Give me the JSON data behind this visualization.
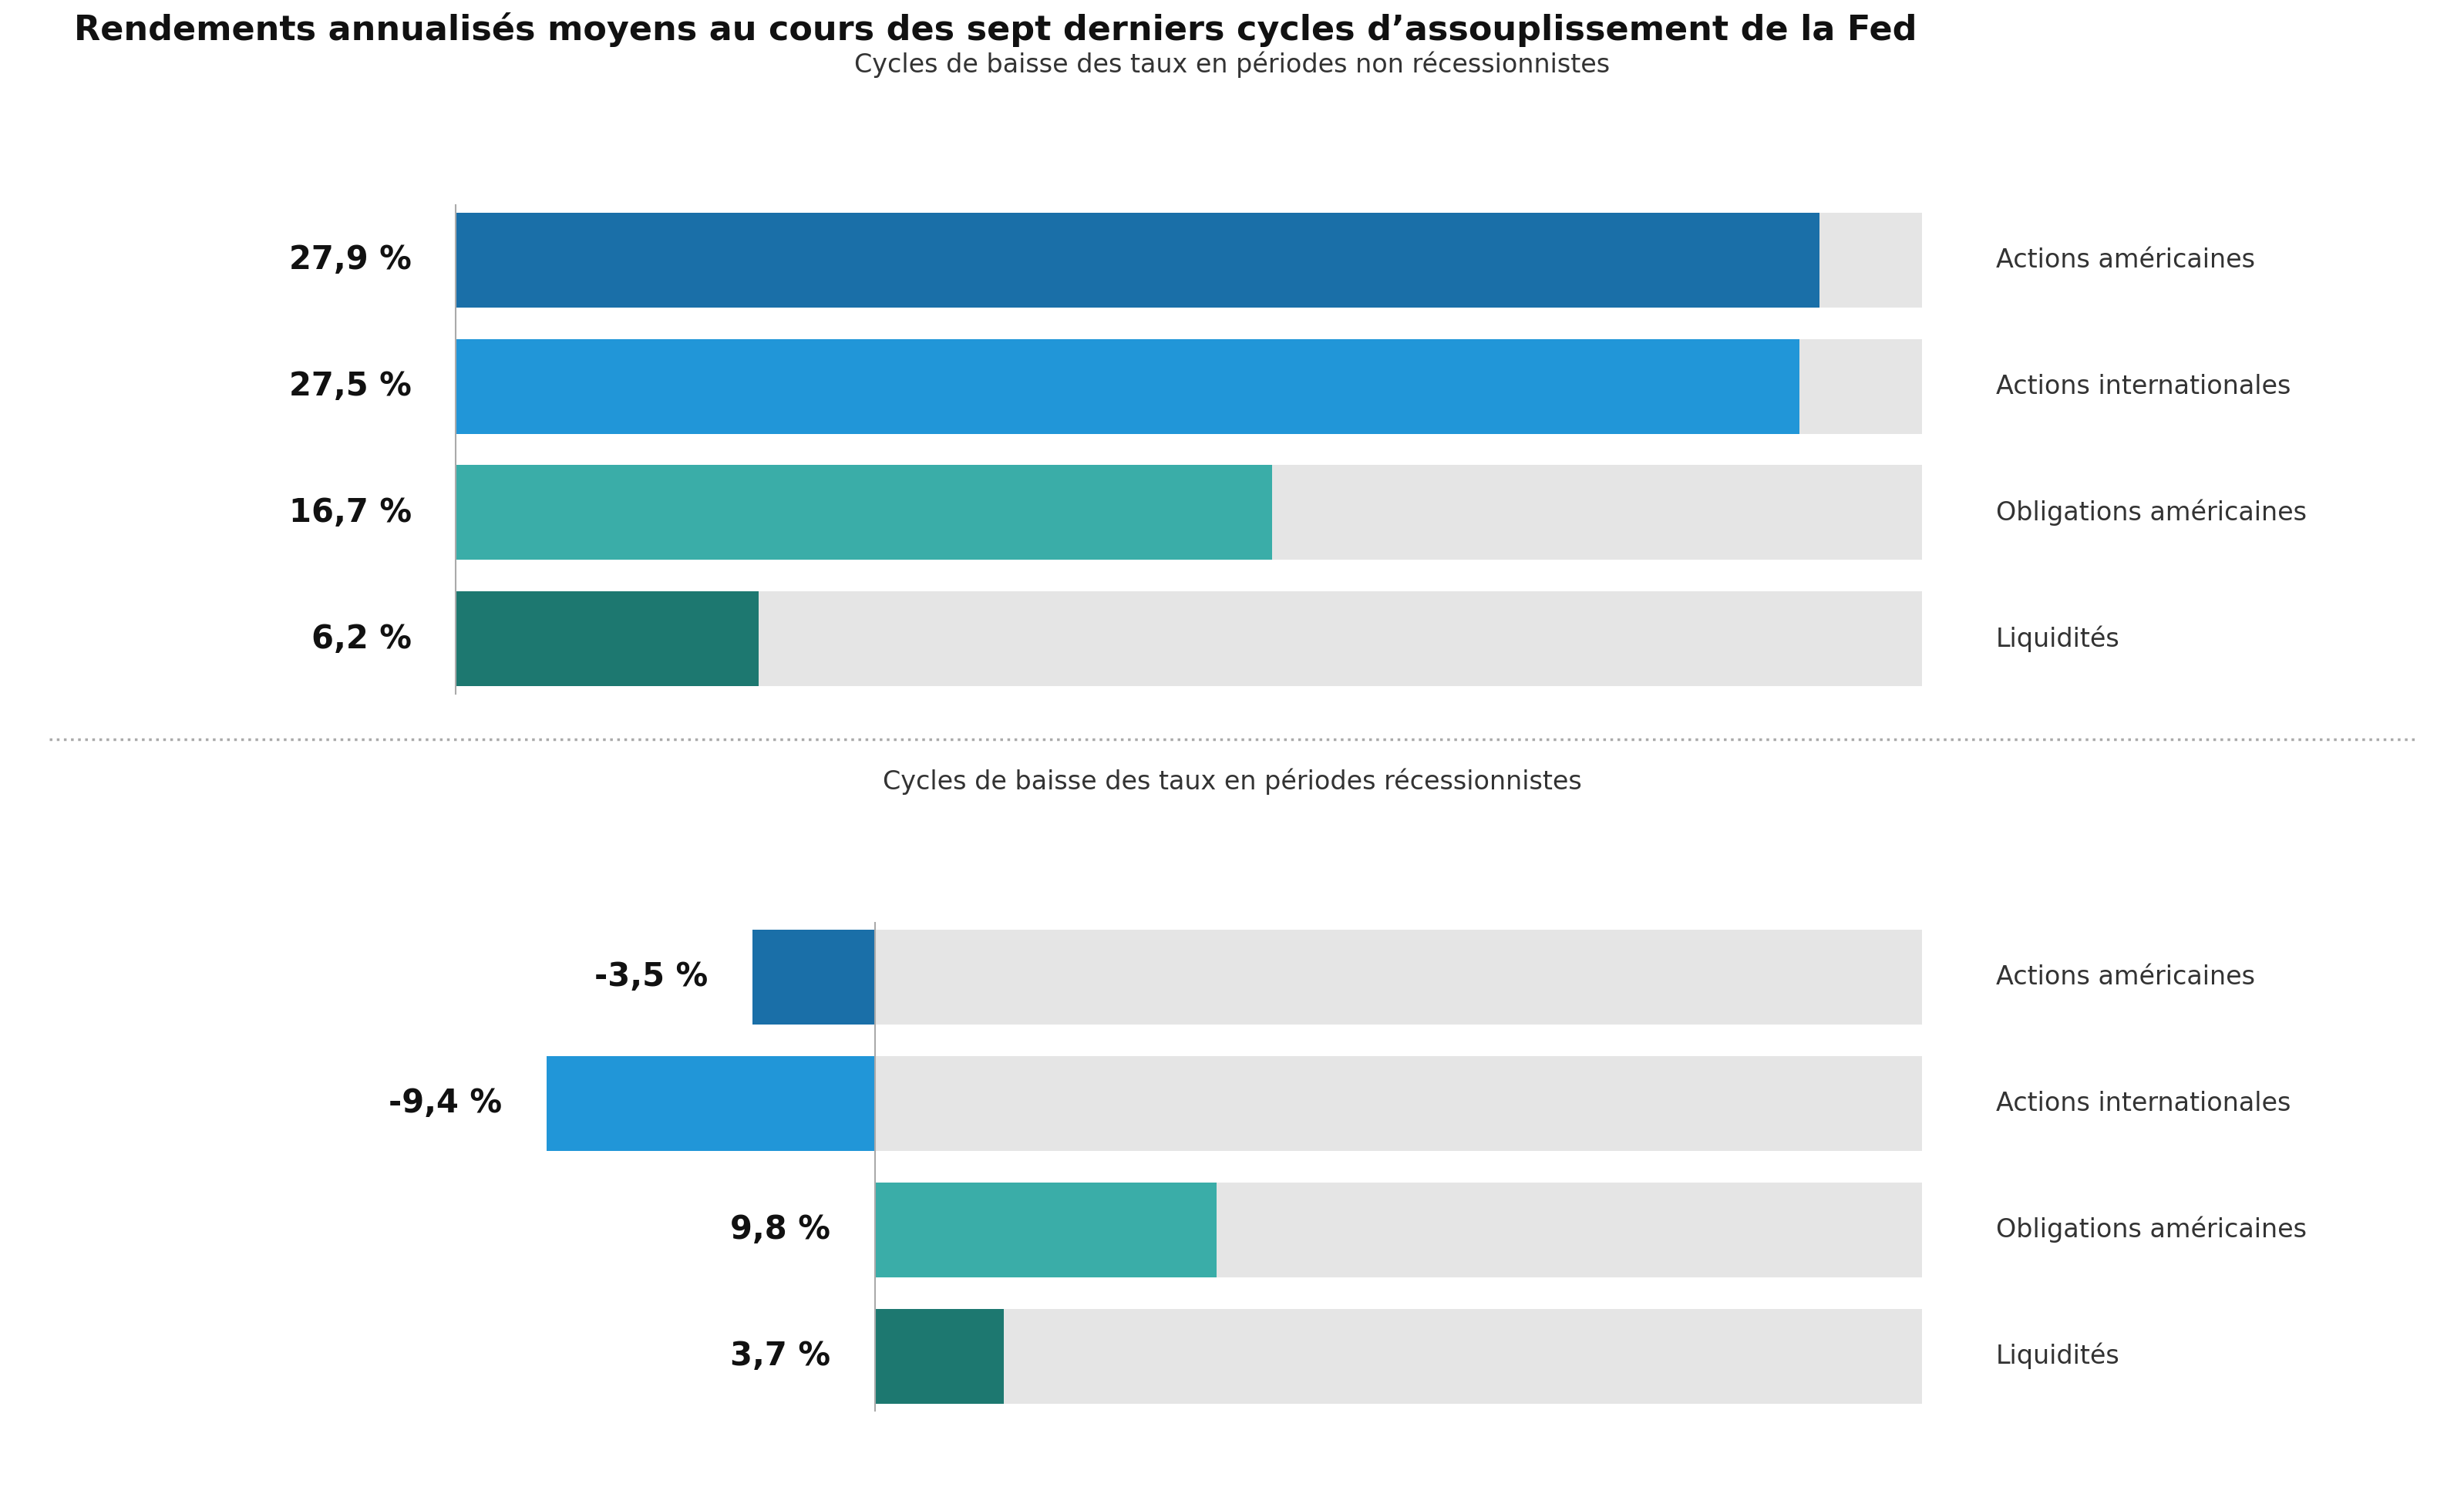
{
  "title": "Rendements annualisés moyens au cours des sept derniers cycles d’assouplissement de la Fed",
  "subtitle_top": "Cycles de baisse des taux en périodes non récessionnistes",
  "subtitle_bottom": "Cycles de baisse des taux en périodes récessionnistes",
  "categories": [
    "Actions américaines",
    "Actions internationales",
    "Obligations américaines",
    "Liquidités"
  ],
  "non_recessionary": [
    27.9,
    27.5,
    16.7,
    6.2
  ],
  "recessionary": [
    -3.5,
    -9.4,
    9.8,
    3.7
  ],
  "bar_colors": [
    "#1a6fa8",
    "#2196d8",
    "#3aada8",
    "#1d7870"
  ],
  "bg_bar_color": "#e5e5e5",
  "value_labels_non_rec": [
    "27,9 %",
    "27,5 %",
    "16,7 %",
    "6,2 %"
  ],
  "value_labels_rec": [
    "-3,5 %",
    "-9,4 %",
    "9,8 %",
    "3,7 %"
  ],
  "max_value": 30,
  "min_value": -12,
  "background_color": "#ffffff",
  "title_fontsize": 32,
  "subtitle_fontsize": 24,
  "value_fontsize": 30,
  "category_fontsize": 24,
  "separator_color": "#aaaaaa",
  "zero_line_color": "#aaaaaa",
  "text_color": "#111111",
  "category_text_color": "#333333"
}
